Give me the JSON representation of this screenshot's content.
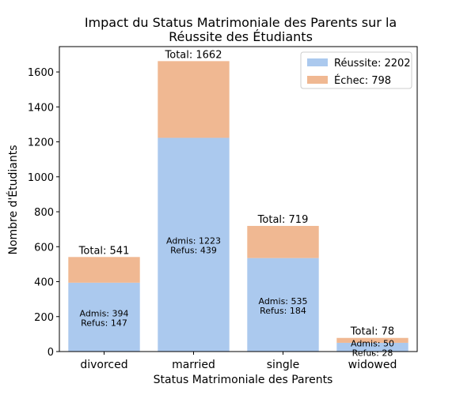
{
  "chart_data": {
    "type": "bar",
    "stacked": true,
    "title": "Impact du Status Matrimoniale des Parents sur la\nRéussite des Étudiants",
    "xlabel": "Status Matrimoniale des Parents",
    "ylabel": "Nombre d'Étudiants",
    "categories": [
      "divorced",
      "married",
      "single",
      "widowed"
    ],
    "series": [
      {
        "name": "Réussite: 2202",
        "values": [
          394,
          1223,
          535,
          50
        ],
        "color": "#abc9ee"
      },
      {
        "name": "Échec: 798",
        "values": [
          147,
          439,
          184,
          28
        ],
        "color": "#f0b892"
      }
    ],
    "totals_labels": [
      "Total: 541",
      "Total: 1662",
      "Total: 719",
      "Total: 78"
    ],
    "inner_labels": [
      [
        "Admis: 394",
        "Refus: 147"
      ],
      [
        "Admis: 1223",
        "Refus: 439"
      ],
      [
        "Admis: 535",
        "Refus: 184"
      ],
      [
        "Admis: 50",
        "Refus: 28"
      ]
    ],
    "ylim": [
      0,
      1745
    ],
    "yticks": [
      0,
      200,
      400,
      600,
      800,
      1000,
      1200,
      1400,
      1600
    ],
    "legend": "top-right",
    "grid": false
  }
}
